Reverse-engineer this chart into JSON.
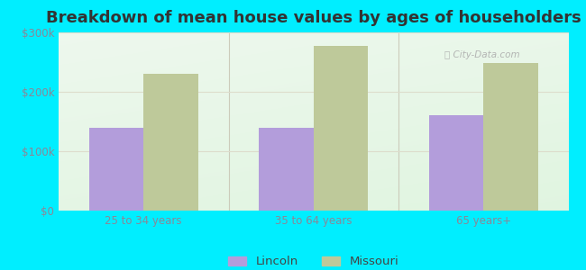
{
  "title": "Breakdown of mean house values by ages of householders",
  "categories": [
    "25 to 34 years",
    "35 to 64 years",
    "65 years+"
  ],
  "lincoln_values": [
    140000,
    140000,
    160000
  ],
  "missouri_values": [
    230000,
    278000,
    248000
  ],
  "lincoln_color": "#b39ddb",
  "missouri_color": "#bec99a",
  "ylim": [
    0,
    300000
  ],
  "yticks": [
    0,
    100000,
    200000,
    300000
  ],
  "ytick_labels": [
    "$0",
    "$100k",
    "$200k",
    "$300k"
  ],
  "legend_labels": [
    "Lincoln",
    "Missouri"
  ],
  "bar_width": 0.32,
  "background_outer": "#00eeff",
  "title_fontsize": 13,
  "tick_fontsize": 8.5,
  "legend_fontsize": 9.5,
  "tick_color": "#888899",
  "grid_color": "#ddddcc",
  "separator_color": "#ccccbb"
}
